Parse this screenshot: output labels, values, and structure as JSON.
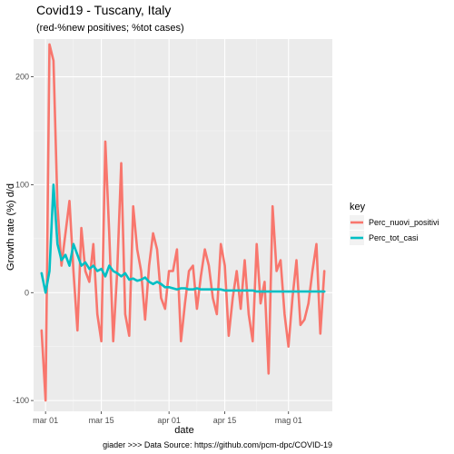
{
  "chart_data": {
    "type": "line",
    "title": "Covid19 - Tuscany, Italy",
    "subtitle": "(red-%new positives; %tot cases)",
    "xlabel": "date",
    "ylabel": "Growth rate (%) d/d",
    "caption": "giader >>>  Data Source: https://github.com/pcm-dpc/COVID-19",
    "legend_title": "key",
    "legend_position": "right",
    "grid": true,
    "x_ticks": [
      "mar 01",
      "mar 15",
      "apr 01",
      "apr 15",
      "mag 01"
    ],
    "x_tick_days": [
      0,
      14,
      31,
      45,
      61
    ],
    "y_ticks": [
      -100,
      0,
      100,
      200
    ],
    "xlim": [
      -3,
      72
    ],
    "ylim": [
      -110,
      235
    ],
    "x": [
      -1,
      0,
      1,
      2,
      3,
      4,
      5,
      6,
      7,
      8,
      9,
      10,
      11,
      12,
      13,
      14,
      15,
      16,
      17,
      18,
      19,
      20,
      21,
      22,
      23,
      24,
      25,
      26,
      27,
      28,
      29,
      30,
      31,
      32,
      33,
      34,
      35,
      36,
      37,
      38,
      39,
      40,
      41,
      42,
      43,
      44,
      45,
      46,
      47,
      48,
      49,
      50,
      51,
      52,
      53,
      54,
      55,
      56,
      57,
      58,
      59,
      60,
      61,
      62,
      63,
      64,
      65,
      66,
      67,
      68,
      69,
      70
    ],
    "series": [
      {
        "name": "Perc_nuovi_positivi",
        "color": "#F8766D",
        "values": [
          -35,
          -100,
          230,
          215,
          80,
          25,
          55,
          85,
          20,
          -35,
          60,
          20,
          10,
          45,
          -20,
          -45,
          140,
          55,
          -45,
          20,
          120,
          -20,
          -40,
          80,
          40,
          20,
          -25,
          25,
          55,
          40,
          -5,
          -15,
          20,
          20,
          40,
          -45,
          -10,
          20,
          25,
          -15,
          15,
          40,
          25,
          -5,
          -20,
          45,
          25,
          -40,
          -5,
          20,
          -15,
          30,
          -20,
          -45,
          45,
          -10,
          10,
          -75,
          80,
          20,
          30,
          -20,
          -50,
          -5,
          30,
          -30,
          -25,
          -10,
          20,
          45,
          -38,
          20
        ]
      },
      {
        "name": "Perc_tot_casi",
        "color": "#00BFC4",
        "values": [
          18,
          0,
          20,
          100,
          45,
          30,
          35,
          25,
          45,
          35,
          25,
          28,
          22,
          25,
          20,
          22,
          15,
          25,
          20,
          18,
          15,
          18,
          12,
          13,
          11,
          12,
          14,
          10,
          8,
          10,
          8,
          5,
          5,
          4,
          3,
          4,
          4,
          3,
          3,
          4,
          3,
          3,
          3,
          3,
          3,
          3,
          2,
          2,
          2,
          2,
          2,
          2,
          2,
          2,
          1,
          1,
          1,
          1,
          1,
          1,
          1,
          1,
          1,
          1,
          1,
          1,
          1,
          1,
          1,
          1,
          1,
          1
        ]
      }
    ]
  }
}
